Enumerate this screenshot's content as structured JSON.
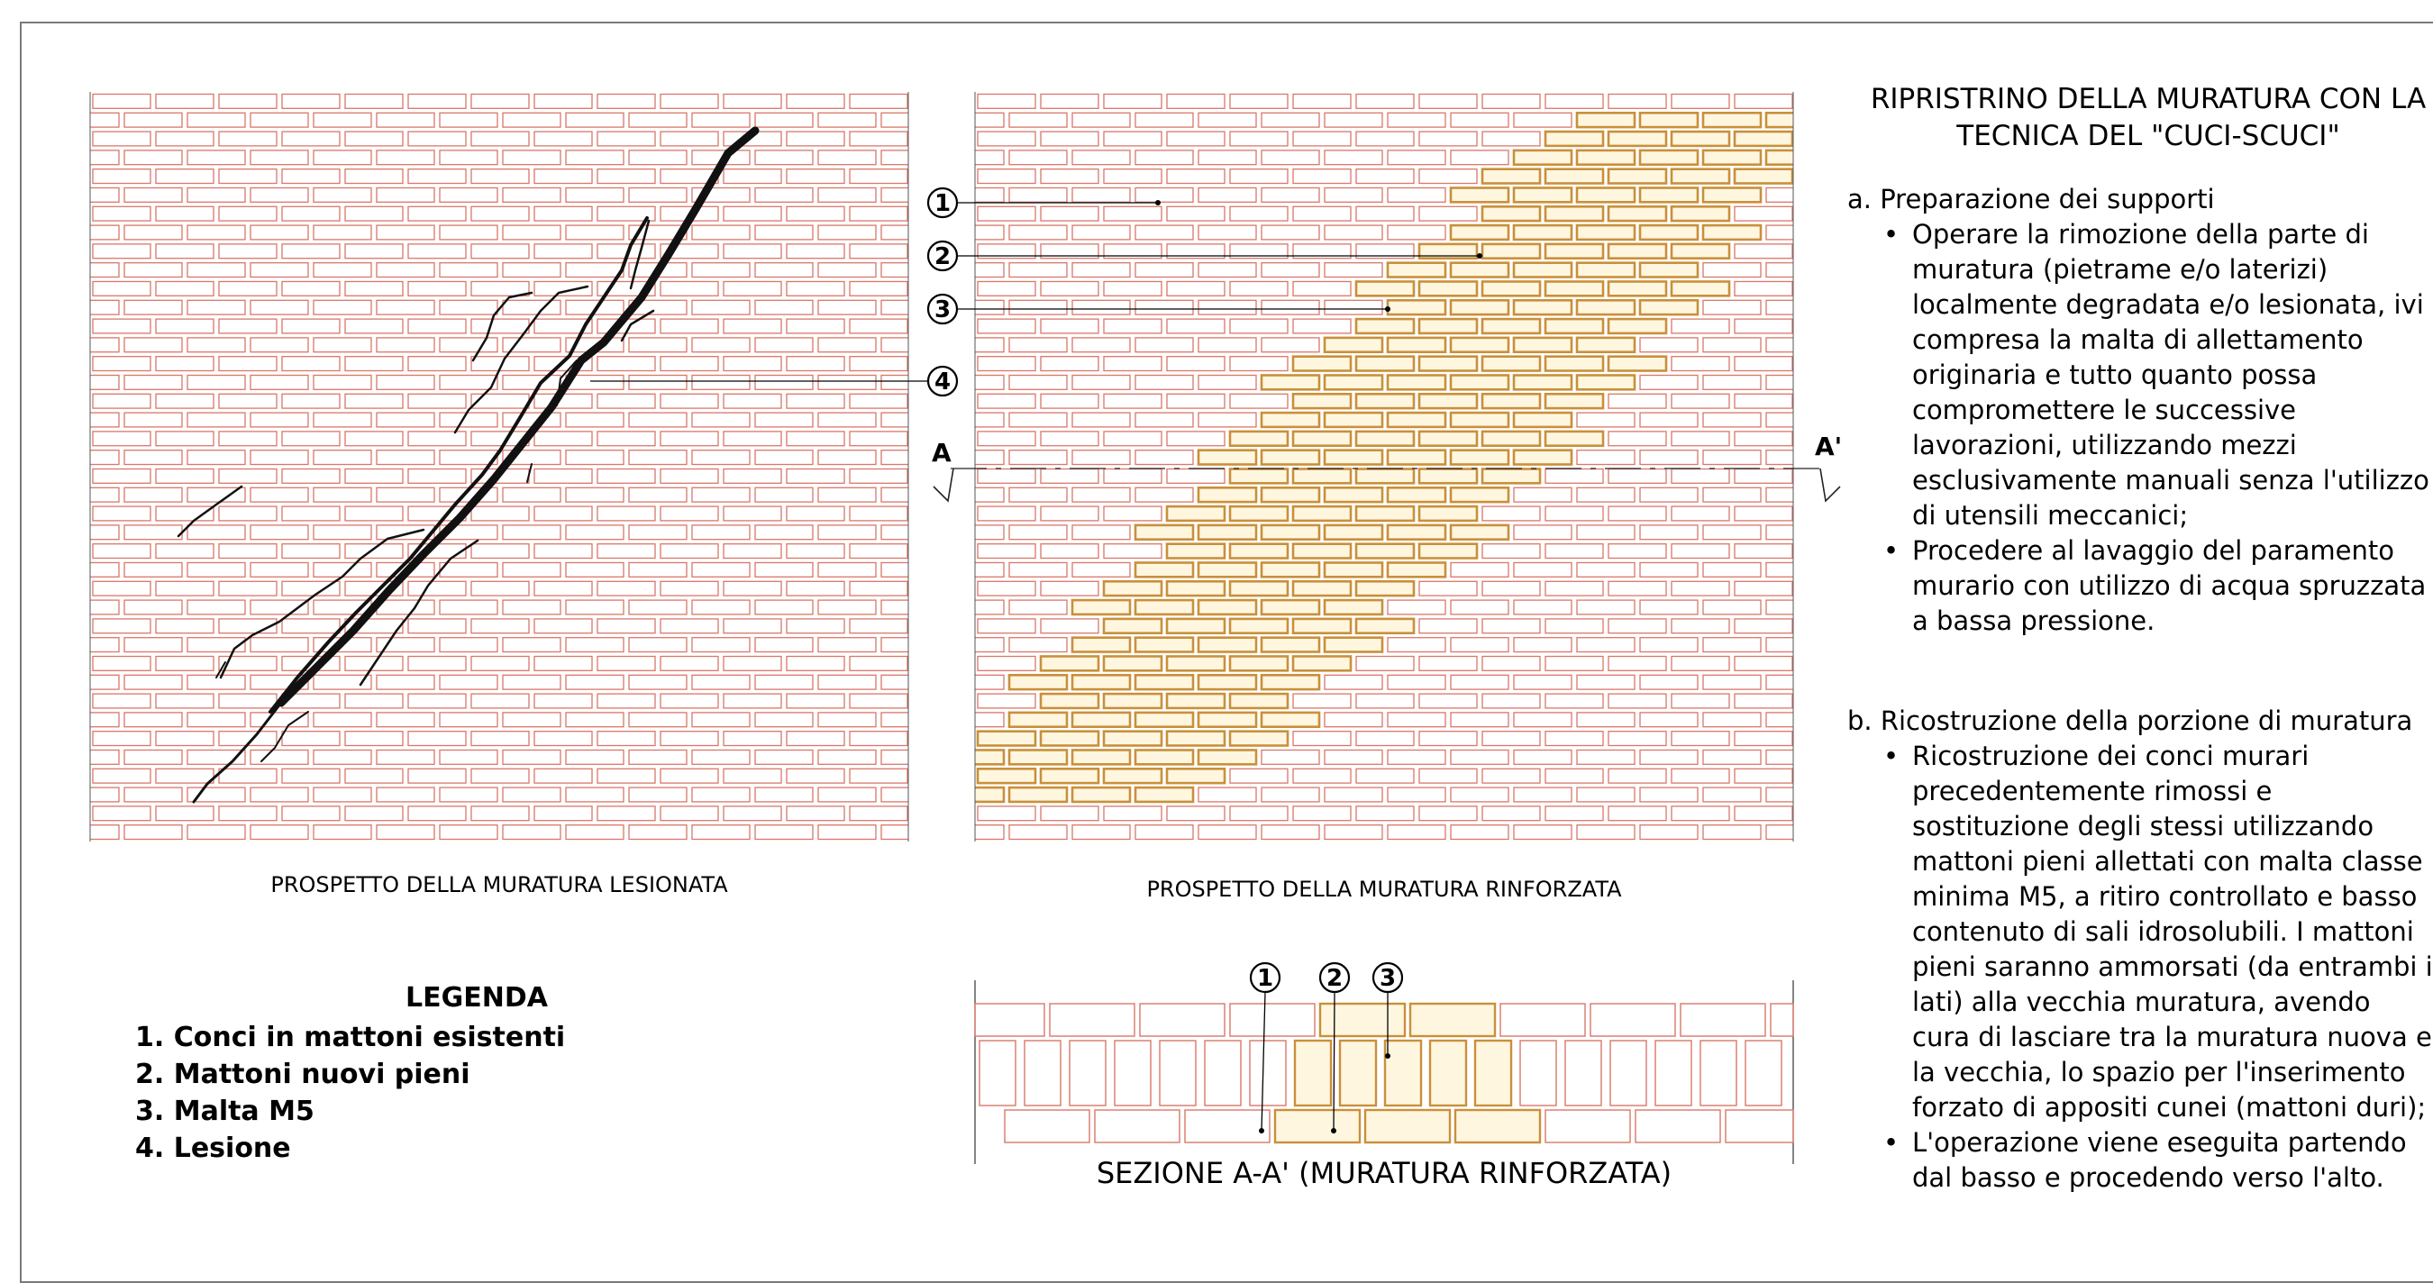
{
  "title_line1": "RIPRISTRINO DELLA MURATURA CON LA",
  "title_line2": "TECNICA DEL \"CUCI-SCUCI\"",
  "section_a": {
    "heading": "a. Preparazione dei supporti",
    "bullets": [
      "Operare la rimozione della parte di muratura (pietrame e/o laterizi) localmente degradata e/o lesionata, ivi compresa la malta di allettamento originaria e tutto quanto possa compromettere le successive lavorazioni, utilizzando mezzi esclusivamente manuali senza l'utilizzo di utensili meccanici;",
      "Procedere al lavaggio del paramento murario con utilizzo di acqua spruzzata a bassa pressione."
    ]
  },
  "section_b": {
    "heading": "b. Ricostruzione della porzione di muratura",
    "bullets": [
      "Ricostruzione dei conci murari precedentemente rimossi e sostituzione degli stessi utilizzando mattoni pieni allettati con malta classe minima M5, a ritiro controllato e basso contenuto di sali idrosolubili. I mattoni pieni saranno ammorsati (da entrambi i lati) alla vecchia muratura, avendo cura di lasciare tra la muratura nuova e la vecchia, lo spazio per l'inserimento forzato di appositi cunei (mattoni duri);",
      "L'operazione viene eseguita partendo dal basso e procedendo verso l'alto."
    ]
  },
  "captions": {
    "left_elevation": "PROSPETTO DELLA MURATURA LESIONATA",
    "right_elevation": "PROSPETTO DELLA MURATURA RINFORZATA",
    "section": "SEZIONE A-A' (MURATURA RINFORZATA)"
  },
  "section_marks": {
    "left": "A",
    "right": "A'"
  },
  "markers": [
    "1",
    "2",
    "3",
    "4"
  ],
  "legend": {
    "title": "LEGENDA",
    "items": [
      "1. Conci in mattoni esistenti",
      "2. Mattoni nuovi pieni",
      "3. Malta M5",
      "4. Lesione"
    ]
  },
  "colors": {
    "brick_outline": "#d9776a",
    "new_brick_outline": "#c9903a",
    "new_brick_fill": "#fff6e0",
    "crack": "#111111",
    "frame": "#7a7a7a"
  }
}
